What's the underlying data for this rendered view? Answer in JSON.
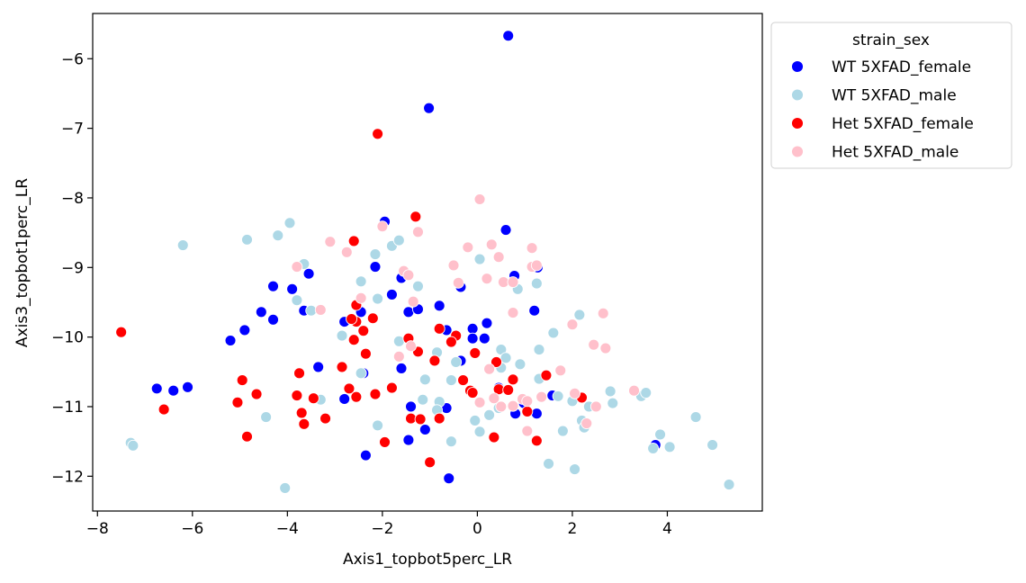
{
  "chart_data": {
    "type": "scatter",
    "title": "",
    "xlabel": "Axis1_topbot5perc_LR",
    "ylabel": "Axis3_topbot1perc_LR",
    "xlim": [
      -8.1,
      6.0
    ],
    "ylim": [
      -12.5,
      -5.35
    ],
    "x_ticks": [
      -8,
      -6,
      -4,
      -2,
      0,
      2,
      4
    ],
    "x_tick_labels": [
      "−8",
      "−6",
      "−4",
      "−2",
      "0",
      "2",
      "4"
    ],
    "y_ticks": [
      -12,
      -11,
      -10,
      -9,
      -8,
      -7,
      -6
    ],
    "y_tick_labels": [
      "−12",
      "−11",
      "−10",
      "−9",
      "−8",
      "−7",
      "−6"
    ],
    "grid": false,
    "legend": {
      "title": "strain_sex",
      "placement": "outside-upper-right"
    },
    "series": [
      {
        "name": "WT 5XFAD_female",
        "color": "#0000ff",
        "points": [
          [
            0.65,
            -5.67
          ],
          [
            -1.02,
            -6.71
          ],
          [
            -1.95,
            -8.34
          ],
          [
            0.6,
            -8.46
          ],
          [
            -2.15,
            -8.99
          ],
          [
            -3.55,
            -9.09
          ],
          [
            -1.6,
            -9.15
          ],
          [
            0.78,
            -9.12
          ],
          [
            1.27,
            -9.0
          ],
          [
            -4.3,
            -9.27
          ],
          [
            -3.9,
            -9.31
          ],
          [
            -0.35,
            -9.28
          ],
          [
            -1.8,
            -9.39
          ],
          [
            -3.65,
            -9.62
          ],
          [
            -2.45,
            -9.64
          ],
          [
            -1.45,
            -9.64
          ],
          [
            -0.8,
            -9.55
          ],
          [
            -1.25,
            -9.6
          ],
          [
            -4.55,
            -9.64
          ],
          [
            -2.8,
            -9.78
          ],
          [
            -4.3,
            -9.75
          ],
          [
            1.2,
            -9.62
          ],
          [
            0.2,
            -9.8
          ],
          [
            -4.9,
            -9.9
          ],
          [
            -5.2,
            -10.05
          ],
          [
            -0.65,
            -9.9
          ],
          [
            -0.1,
            -9.88
          ],
          [
            -0.1,
            -10.02
          ],
          [
            0.15,
            -10.02
          ],
          [
            -0.35,
            -10.34
          ],
          [
            -3.35,
            -10.43
          ],
          [
            -1.6,
            -10.45
          ],
          [
            -2.4,
            -10.52
          ],
          [
            0.45,
            -10.73
          ],
          [
            0.98,
            -10.95
          ],
          [
            1.58,
            -10.84
          ],
          [
            -2.8,
            -10.89
          ],
          [
            -6.75,
            -10.74
          ],
          [
            -6.4,
            -10.77
          ],
          [
            -6.1,
            -10.72
          ],
          [
            -1.4,
            -11.0
          ],
          [
            -0.65,
            -11.02
          ],
          [
            0.8,
            -11.1
          ],
          [
            1.25,
            -11.1
          ],
          [
            -1.1,
            -11.33
          ],
          [
            -1.45,
            -11.48
          ],
          [
            -2.35,
            -11.7
          ],
          [
            -0.6,
            -12.03
          ],
          [
            3.75,
            -11.55
          ]
        ]
      },
      {
        "name": "WT 5XFAD_male",
        "color": "#add8e6",
        "points": [
          [
            -6.2,
            -8.68
          ],
          [
            -4.85,
            -8.6
          ],
          [
            -3.95,
            -8.36
          ],
          [
            -4.2,
            -8.54
          ],
          [
            -3.65,
            -8.95
          ],
          [
            -1.8,
            -8.69
          ],
          [
            -1.65,
            -8.61
          ],
          [
            -2.15,
            -8.81
          ],
          [
            0.05,
            -8.88
          ],
          [
            -2.45,
            -9.2
          ],
          [
            -2.1,
            -9.45
          ],
          [
            -1.25,
            -9.27
          ],
          [
            -3.8,
            -9.47
          ],
          [
            -3.5,
            -9.62
          ],
          [
            0.85,
            -9.31
          ],
          [
            1.25,
            -9.23
          ],
          [
            2.15,
            -9.68
          ],
          [
            1.6,
            -9.94
          ],
          [
            -2.85,
            -9.98
          ],
          [
            -1.65,
            -10.06
          ],
          [
            -0.85,
            -10.22
          ],
          [
            0.5,
            -10.18
          ],
          [
            1.3,
            -10.18
          ],
          [
            -0.9,
            -10.34
          ],
          [
            -0.45,
            -10.36
          ],
          [
            -2.45,
            -10.52
          ],
          [
            0.5,
            -10.44
          ],
          [
            0.9,
            -10.39
          ],
          [
            -1.1,
            -10.61
          ],
          [
            -0.55,
            -10.62
          ],
          [
            -3.3,
            -10.9
          ],
          [
            -1.15,
            -10.9
          ],
          [
            -0.8,
            -10.93
          ],
          [
            0.6,
            -10.3
          ],
          [
            1.3,
            -10.6
          ],
          [
            1.7,
            -10.85
          ],
          [
            2.0,
            -10.92
          ],
          [
            2.35,
            -11.0
          ],
          [
            2.85,
            -10.95
          ],
          [
            2.8,
            -10.78
          ],
          [
            3.45,
            -10.85
          ],
          [
            3.55,
            -10.8
          ],
          [
            -4.45,
            -11.15
          ],
          [
            -2.1,
            -11.27
          ],
          [
            -0.85,
            -11.05
          ],
          [
            -0.05,
            -11.2
          ],
          [
            0.25,
            -11.12
          ],
          [
            0.45,
            -11.02
          ],
          [
            1.8,
            -11.35
          ],
          [
            2.2,
            -11.2
          ],
          [
            2.25,
            -11.3
          ],
          [
            -7.3,
            -11.52
          ],
          [
            -7.25,
            -11.56
          ],
          [
            -0.55,
            -11.5
          ],
          [
            0.05,
            -11.36
          ],
          [
            1.5,
            -11.82
          ],
          [
            2.05,
            -11.9
          ],
          [
            3.7,
            -11.6
          ],
          [
            3.85,
            -11.4
          ],
          [
            4.05,
            -11.58
          ],
          [
            4.6,
            -11.15
          ],
          [
            4.95,
            -11.55
          ],
          [
            -4.05,
            -12.17
          ],
          [
            5.3,
            -12.12
          ]
        ]
      },
      {
        "name": "Het 5XFAD_female",
        "color": "#ff0000",
        "points": [
          [
            -2.1,
            -7.08
          ],
          [
            -1.3,
            -8.27
          ],
          [
            -2.6,
            -8.62
          ],
          [
            -2.55,
            -9.54
          ],
          [
            -2.2,
            -9.73
          ],
          [
            -2.55,
            -9.78
          ],
          [
            -2.65,
            -9.74
          ],
          [
            -2.4,
            -9.91
          ],
          [
            -0.8,
            -9.88
          ],
          [
            -0.45,
            -9.98
          ],
          [
            -7.5,
            -9.93
          ],
          [
            -2.6,
            -10.04
          ],
          [
            -1.45,
            -10.02
          ],
          [
            -0.55,
            -10.07
          ],
          [
            -2.35,
            -10.24
          ],
          [
            -1.25,
            -10.21
          ],
          [
            -0.9,
            -10.34
          ],
          [
            -0.05,
            -10.23
          ],
          [
            -2.85,
            -10.43
          ],
          [
            -3.75,
            -10.52
          ],
          [
            -4.95,
            -10.62
          ],
          [
            0.4,
            -10.36
          ],
          [
            1.45,
            -10.55
          ],
          [
            0.45,
            -10.75
          ],
          [
            0.65,
            -10.76
          ],
          [
            -0.3,
            -10.62
          ],
          [
            -0.15,
            -10.77
          ],
          [
            -0.1,
            -10.8
          ],
          [
            0.75,
            -10.61
          ],
          [
            -3.8,
            -10.84
          ],
          [
            -3.45,
            -10.88
          ],
          [
            -2.7,
            -10.74
          ],
          [
            -2.55,
            -10.86
          ],
          [
            -2.15,
            -10.82
          ],
          [
            -1.8,
            -10.73
          ],
          [
            -4.65,
            -10.82
          ],
          [
            -5.05,
            -10.94
          ],
          [
            -6.6,
            -11.04
          ],
          [
            -3.7,
            -11.09
          ],
          [
            -3.65,
            -11.25
          ],
          [
            -3.2,
            -11.17
          ],
          [
            -1.4,
            -11.17
          ],
          [
            -1.2,
            -11.18
          ],
          [
            -0.8,
            -11.17
          ],
          [
            1.05,
            -11.07
          ],
          [
            2.2,
            -10.87
          ],
          [
            -4.85,
            -11.43
          ],
          [
            -1.95,
            -11.51
          ],
          [
            0.35,
            -11.44
          ],
          [
            1.25,
            -11.49
          ],
          [
            -1.0,
            -11.8
          ]
        ]
      },
      {
        "name": "Het 5XFAD_male",
        "color": "#ffc0cb",
        "points": [
          [
            0.05,
            -8.02
          ],
          [
            -2.0,
            -8.41
          ],
          [
            -1.25,
            -8.49
          ],
          [
            -3.1,
            -8.63
          ],
          [
            -2.75,
            -8.78
          ],
          [
            -0.2,
            -8.71
          ],
          [
            0.3,
            -8.67
          ],
          [
            1.15,
            -8.72
          ],
          [
            0.45,
            -8.85
          ],
          [
            -3.8,
            -8.99
          ],
          [
            -0.5,
            -8.97
          ],
          [
            1.15,
            -8.99
          ],
          [
            1.25,
            -8.97
          ],
          [
            -1.55,
            -9.05
          ],
          [
            -1.45,
            -9.11
          ],
          [
            0.2,
            -9.16
          ],
          [
            0.55,
            -9.21
          ],
          [
            0.75,
            -9.21
          ],
          [
            -0.4,
            -9.22
          ],
          [
            -2.45,
            -9.44
          ],
          [
            -1.35,
            -9.49
          ],
          [
            -3.3,
            -9.61
          ],
          [
            0.75,
            -9.65
          ],
          [
            2.65,
            -9.66
          ],
          [
            2.0,
            -9.82
          ],
          [
            -1.4,
            -10.13
          ],
          [
            -1.65,
            -10.28
          ],
          [
            2.45,
            -10.11
          ],
          [
            2.7,
            -10.16
          ],
          [
            0.25,
            -10.46
          ],
          [
            1.75,
            -10.48
          ],
          [
            0.35,
            -10.88
          ],
          [
            0.05,
            -10.94
          ],
          [
            0.95,
            -10.89
          ],
          [
            1.35,
            -10.86
          ],
          [
            2.05,
            -10.81
          ],
          [
            2.5,
            -11.0
          ],
          [
            3.3,
            -10.77
          ],
          [
            0.5,
            -11.0
          ],
          [
            0.75,
            -10.99
          ],
          [
            1.05,
            -10.92
          ],
          [
            2.3,
            -11.24
          ],
          [
            1.05,
            -11.35
          ]
        ]
      }
    ]
  }
}
